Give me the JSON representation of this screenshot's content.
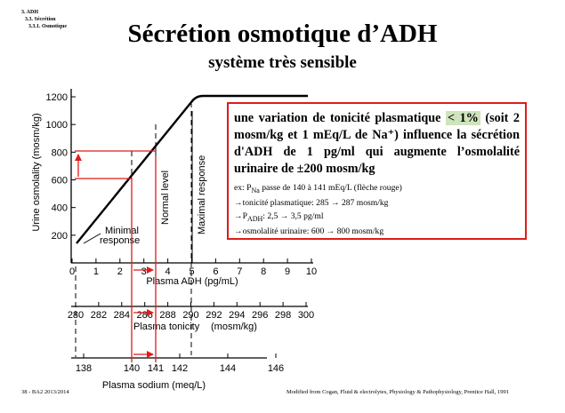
{
  "breadcrumb": [
    "3. ADH",
    "3.3. Sécrétion",
    "3.3.1. Osmotique"
  ],
  "title": "Sécrétion osmotique d’ADH",
  "subtitle": "système très sensible",
  "infobox": {
    "main_before": "une variation de tonicité plasmatique ",
    "main_highlight": "< 1%",
    "main_after": " (soit 2 mosm/kg et 1 mEq/L de Na⁺) influence la sécrétion d'ADH de 1 pg/ml qui augmente l’osmolalité urinaire de ±200 mosm/kg",
    "details": [
      "ex: P<sub>Na</sub> passe de 140 à 141 mEq/L (flèche rouge)",
      "→tonicité plasmatique: 285 → 287 mosm/kg",
      "→P<sub>ADH</sub>: 2,5 → 3,5 pg/ml",
      "→osmolalité urinaire: 600 → 800 mosm/kg"
    ],
    "border_color": "#e01b1b",
    "highlight_color": "#cfe3bd"
  },
  "footer": {
    "left": "38 - BA2 2013/2014",
    "right": "Modified from Cogan, Fluid & electrolytes, Physiology & Pathophysiology, Prentice Hall, 1991"
  },
  "graph": {
    "y_axis_label": "Urine osmolality (mosm/kg)",
    "y_ticks": [
      200,
      400,
      600,
      800,
      1000,
      1200
    ],
    "x1_label": "Plasma ADH (pg/mL)",
    "x1_ticks": [
      0,
      1,
      2,
      3,
      4,
      5,
      6,
      7,
      8,
      9,
      10
    ],
    "x2_label_words": [
      "Plasma",
      "tonicity",
      "(mosm/kg)"
    ],
    "x2_ticks": [
      280,
      282,
      284,
      286,
      288,
      290,
      292,
      294,
      296,
      298,
      300
    ],
    "x3_label": "Plasma sodium (meq/L)",
    "x3_ticks": [
      138,
      140,
      141,
      142,
      144,
      146
    ],
    "annotations": {
      "minimal": [
        "Minimal",
        "response"
      ],
      "normal": "Normal level",
      "maximal": "Maximal response"
    },
    "arrow_color": "#e01b1b"
  }
}
